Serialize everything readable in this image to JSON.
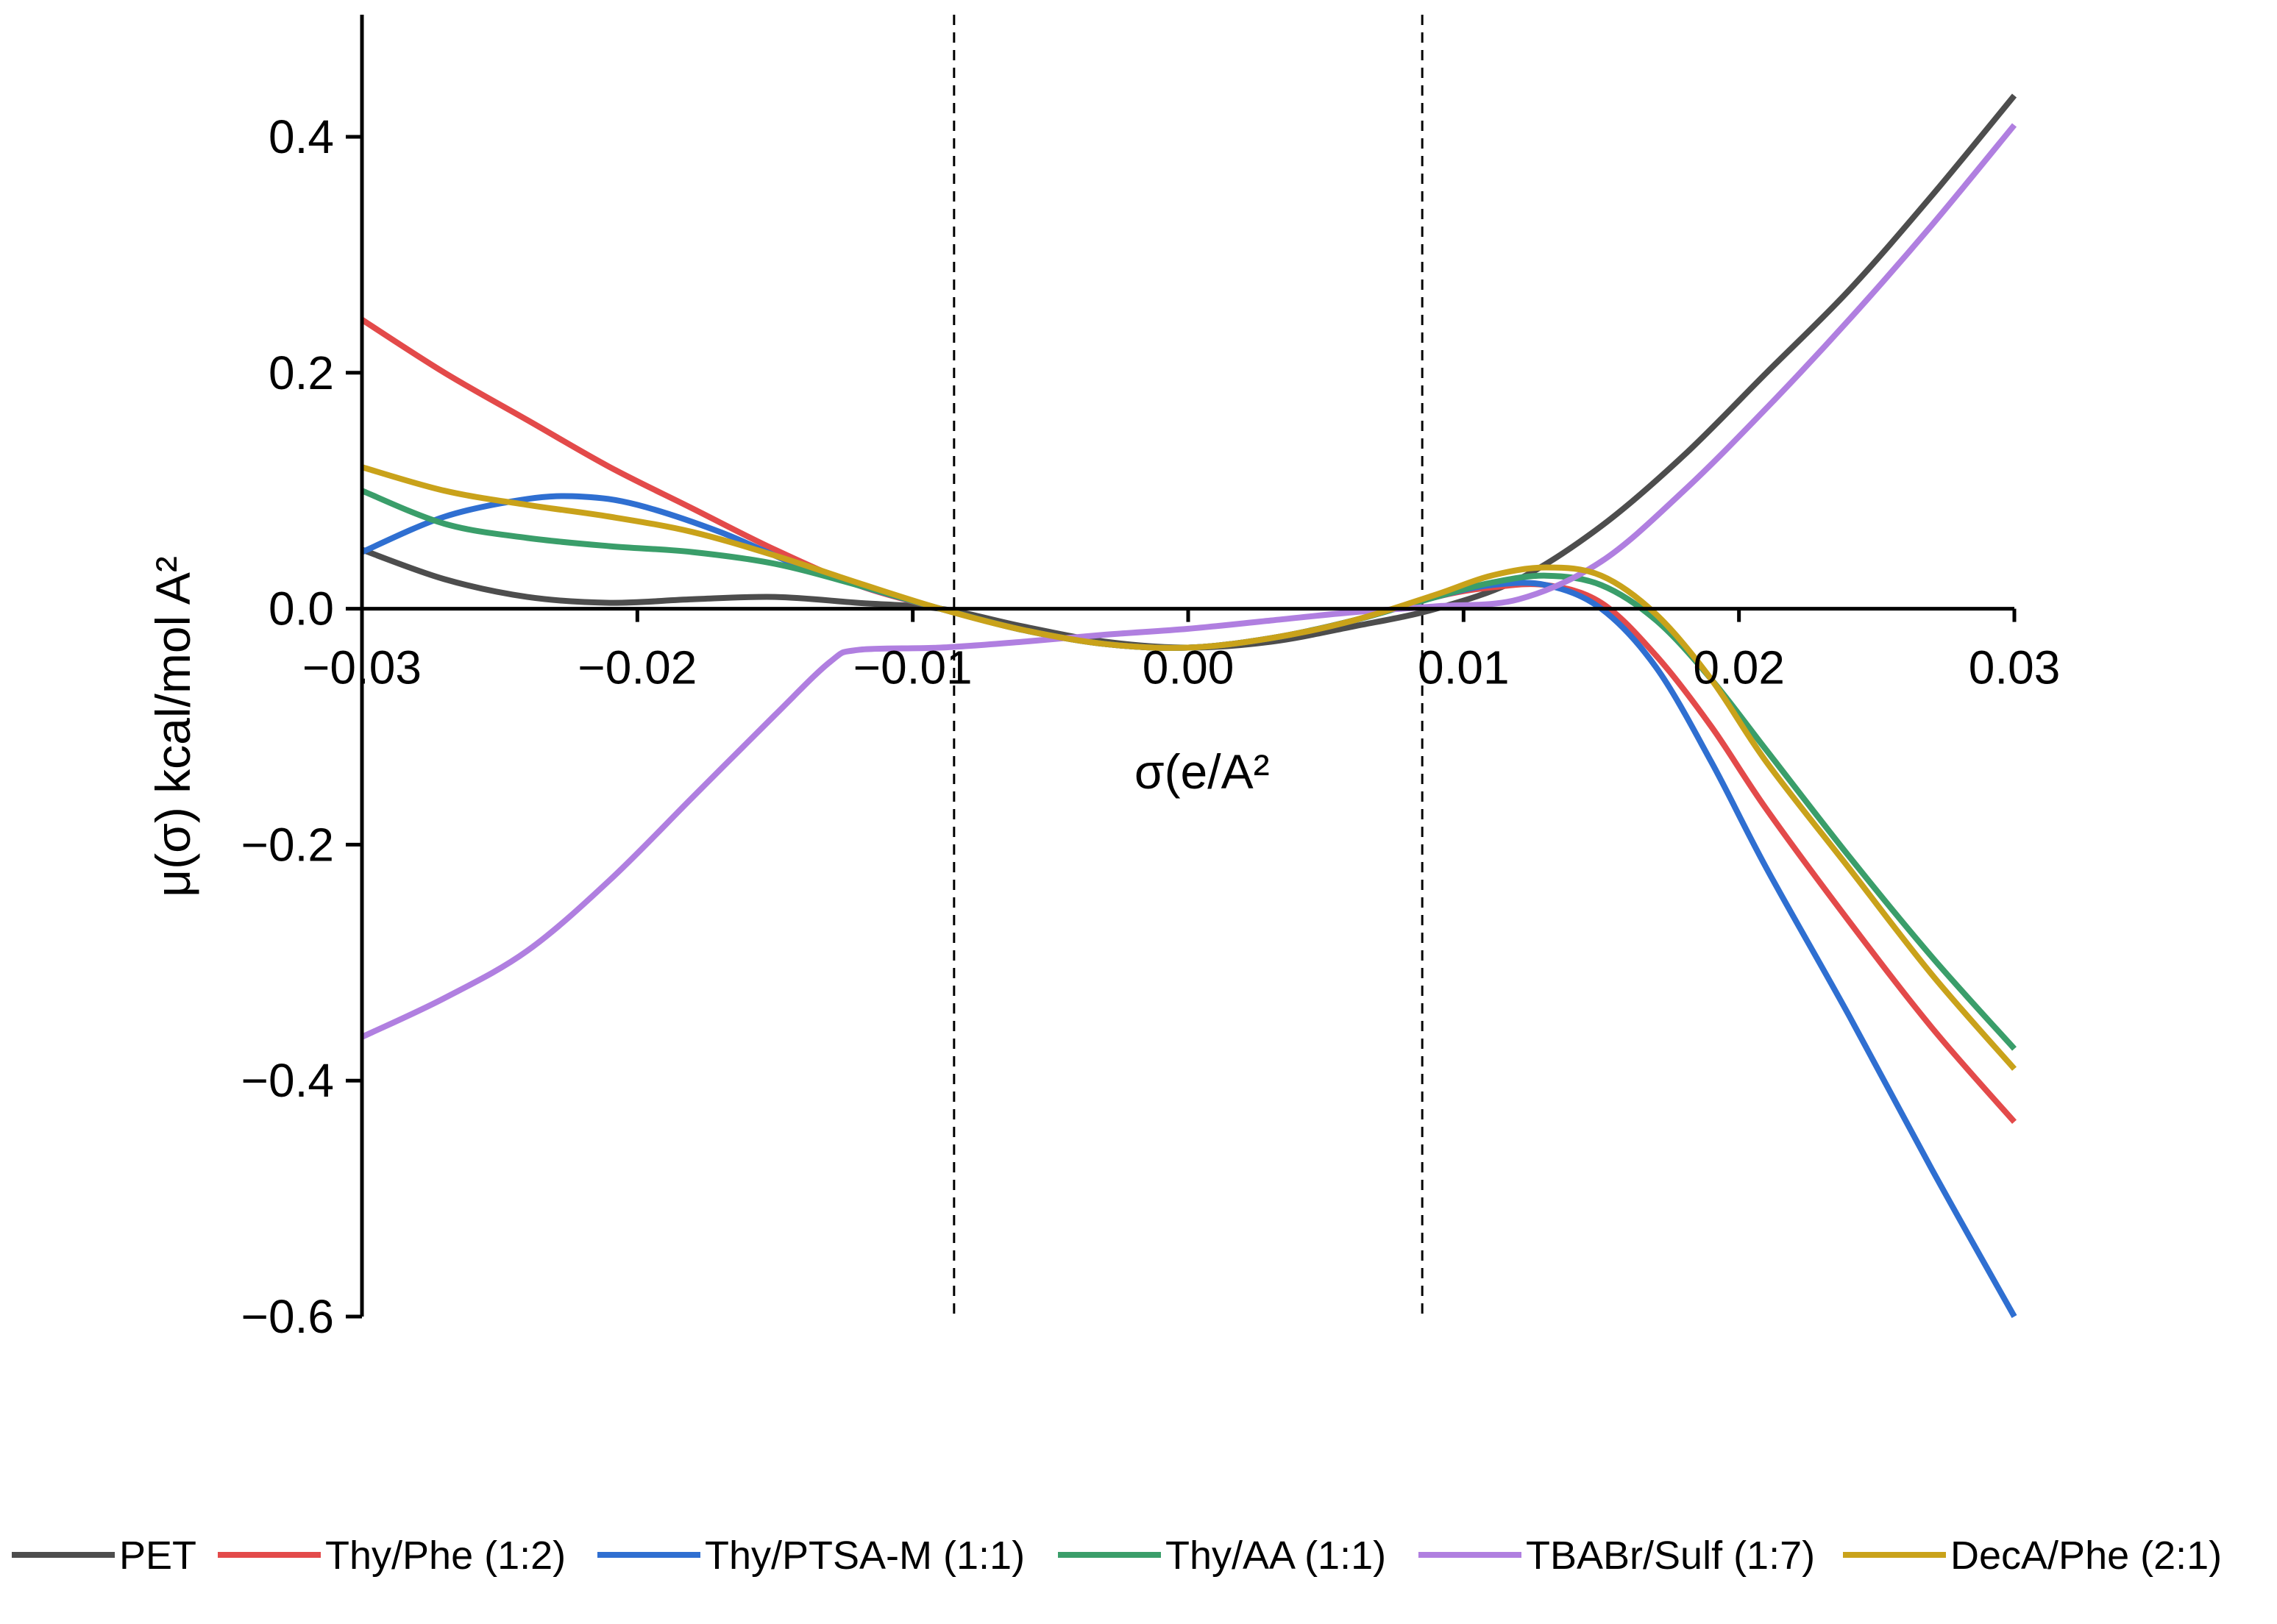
{
  "chart_data": {
    "type": "line",
    "title": "",
    "xlabel": "σ(e/A²",
    "ylabel": "μ(σ) kcal/mol A²",
    "xlim": [
      -0.03,
      0.03
    ],
    "ylim": [
      -0.6,
      0.5
    ],
    "xticks": [
      -0.03,
      -0.02,
      -0.01,
      0.0,
      0.01,
      0.02,
      0.03
    ],
    "xtick_labels": [
      "−0.03",
      "−0.02",
      "−0.01",
      "0.00",
      "0.01",
      "0.02",
      "0.03"
    ],
    "yticks": [
      -0.6,
      -0.4,
      -0.2,
      0.0,
      0.2,
      0.4
    ],
    "ytick_labels": [
      "−0.6",
      "−0.4",
      "−0.2",
      "0.0",
      "0.2",
      "0.4"
    ],
    "vlines": [
      -0.0085,
      0.0085
    ],
    "grid": false,
    "legend_position": "bottom",
    "series": [
      {
        "name": "PET",
        "color": "#4d4d4d",
        "x": [
          -0.03,
          -0.027,
          -0.024,
          -0.021,
          -0.018,
          -0.015,
          -0.012,
          -0.009,
          -0.006,
          -0.003,
          0.0,
          0.003,
          0.006,
          0.009,
          0.012,
          0.015,
          0.018,
          0.021,
          0.024,
          0.027,
          0.03
        ],
        "y": [
          0.05,
          0.025,
          0.01,
          0.005,
          0.008,
          0.01,
          0.005,
          0.0,
          -0.015,
          -0.028,
          -0.033,
          -0.028,
          -0.015,
          0.0,
          0.025,
          0.07,
          0.13,
          0.2,
          0.27,
          0.35,
          0.435
        ]
      },
      {
        "name": "Thy/Phe (1:2)",
        "color": "#e34a4a",
        "x": [
          -0.03,
          -0.027,
          -0.024,
          -0.021,
          -0.018,
          -0.015,
          -0.012,
          -0.009,
          -0.006,
          -0.003,
          0.0,
          0.003,
          0.006,
          0.009,
          0.011,
          0.013,
          0.015,
          0.017,
          0.019,
          0.021,
          0.024,
          0.027,
          0.03
        ],
        "y": [
          0.245,
          0.2,
          0.16,
          0.12,
          0.085,
          0.05,
          0.02,
          0.0,
          -0.018,
          -0.03,
          -0.033,
          -0.025,
          -0.01,
          0.01,
          0.018,
          0.02,
          0.005,
          -0.04,
          -0.1,
          -0.17,
          -0.265,
          -0.355,
          -0.435
        ]
      },
      {
        "name": "Thy/PTSA-M (1:1)",
        "color": "#2f6fd1",
        "x": [
          -0.03,
          -0.027,
          -0.024,
          -0.022,
          -0.02,
          -0.017,
          -0.014,
          -0.012,
          -0.009,
          -0.006,
          -0.003,
          0.0,
          0.003,
          0.006,
          0.009,
          0.011,
          0.013,
          0.015,
          0.017,
          0.019,
          0.021,
          0.024,
          0.027,
          0.03
        ],
        "y": [
          0.048,
          0.078,
          0.093,
          0.095,
          0.088,
          0.065,
          0.035,
          0.02,
          0.0,
          -0.018,
          -0.03,
          -0.033,
          -0.025,
          -0.01,
          0.01,
          0.02,
          0.02,
          0.0,
          -0.05,
          -0.13,
          -0.22,
          -0.345,
          -0.475,
          -0.6
        ]
      },
      {
        "name": "Thy/AA (1:1)",
        "color": "#3a9e6a",
        "x": [
          -0.03,
          -0.027,
          -0.024,
          -0.021,
          -0.018,
          -0.015,
          -0.012,
          -0.009,
          -0.006,
          -0.003,
          0.0,
          0.003,
          0.006,
          0.009,
          0.011,
          0.013,
          0.015,
          0.017,
          0.019,
          0.021,
          0.024,
          0.027,
          0.03
        ],
        "y": [
          0.1,
          0.072,
          0.06,
          0.053,
          0.048,
          0.038,
          0.02,
          0.0,
          -0.018,
          -0.03,
          -0.033,
          -0.025,
          -0.01,
          0.01,
          0.022,
          0.028,
          0.02,
          -0.01,
          -0.06,
          -0.12,
          -0.21,
          -0.295,
          -0.373
        ]
      },
      {
        "name": "TBABr/Sulf (1:7)",
        "color": "#b07fe0",
        "x": [
          -0.03,
          -0.027,
          -0.024,
          -0.021,
          -0.018,
          -0.015,
          -0.013,
          -0.012,
          -0.009,
          -0.006,
          -0.003,
          0.0,
          0.003,
          0.006,
          0.009,
          0.012,
          0.015,
          0.018,
          0.021,
          0.024,
          0.027,
          0.03
        ],
        "y": [
          -0.363,
          -0.33,
          -0.29,
          -0.23,
          -0.16,
          -0.09,
          -0.045,
          -0.035,
          -0.033,
          -0.028,
          -0.022,
          -0.017,
          -0.01,
          -0.003,
          0.002,
          0.008,
          0.04,
          0.1,
          0.17,
          0.245,
          0.325,
          0.41
        ]
      },
      {
        "name": "DecA/Phe (2:1)",
        "color": "#c9a21a",
        "x": [
          -0.03,
          -0.027,
          -0.024,
          -0.021,
          -0.018,
          -0.015,
          -0.012,
          -0.009,
          -0.006,
          -0.003,
          0.0,
          0.003,
          0.006,
          0.009,
          0.011,
          0.013,
          0.015,
          0.017,
          0.019,
          0.021,
          0.024,
          0.027,
          0.03
        ],
        "y": [
          0.12,
          0.1,
          0.088,
          0.078,
          0.065,
          0.045,
          0.022,
          0.0,
          -0.018,
          -0.03,
          -0.033,
          -0.025,
          -0.01,
          0.012,
          0.028,
          0.035,
          0.028,
          -0.005,
          -0.06,
          -0.13,
          -0.22,
          -0.31,
          -0.39
        ]
      }
    ]
  }
}
